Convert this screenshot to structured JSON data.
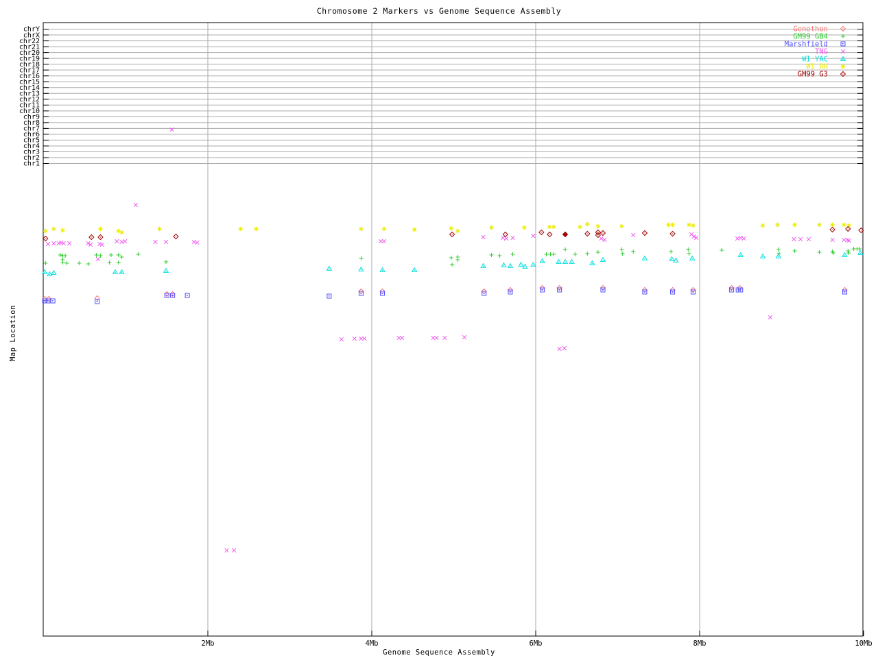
{
  "chart_data": {
    "type": "scatter",
    "title": "Chromosome 2 Markers vs Genome Sequence Assembly",
    "xlabel": "Genome Sequence Assembly",
    "ylabel": "Map Location",
    "xlim": [
      0,
      10
    ],
    "x_unit": "Mb",
    "y_note": "y-axis has no numeric scale; point y values are vertical screen positions (px), chromosome bins listed bottom-to-top",
    "grid": "horizontal line per chromosome bin, vertical line per labeled Mb tick",
    "legend_position": "top-right inside plot",
    "colors": {
      "axis": "#000000",
      "gridline": "#aaaaaa",
      "background": "#ffffff"
    },
    "x_ticks": [
      {
        "label": "2Mb",
        "mb": 2,
        "grid": true
      },
      {
        "label": "4Mb",
        "mb": 4,
        "grid": true
      },
      {
        "label": "6Mb",
        "mb": 6,
        "grid": true
      },
      {
        "label": "8Mb",
        "mb": 8,
        "grid": true
      },
      {
        "label": "10Mb",
        "mb": 10,
        "grid": false
      }
    ],
    "y_categories": [
      "chr1",
      "chr2",
      "chr3",
      "chr4",
      "chr5",
      "chr6",
      "chr7",
      "chr8",
      "chr9",
      "chr10",
      "chr11",
      "chr12",
      "chr13",
      "chr14",
      "chr15",
      "chr16",
      "chr17",
      "chr18",
      "chr19",
      "chr20",
      "chr21",
      "chr22",
      "chrX",
      "chrY"
    ],
    "series": [
      {
        "name": "Genethon",
        "color": "#f87878",
        "marker": "open-diamond-dot",
        "points": [
          [
            0.01,
            436
          ],
          [
            0.06,
            436
          ],
          [
            0.65,
            435
          ],
          [
            1.5,
            429
          ],
          [
            1.57,
            429
          ],
          [
            3.87,
            425
          ],
          [
            4.13,
            425
          ],
          [
            5.37,
            425
          ],
          [
            5.69,
            423
          ],
          [
            6.08,
            420
          ],
          [
            6.29,
            420
          ],
          [
            6.82,
            420
          ],
          [
            7.33,
            423
          ],
          [
            7.67,
            423
          ],
          [
            7.92,
            423
          ],
          [
            8.39,
            420
          ],
          [
            8.49,
            420
          ],
          [
            9.77,
            423
          ]
        ]
      },
      {
        "name": "GM99 GB4",
        "color": "#33cc33",
        "marker": "plus",
        "points": [
          [
            0.02,
            384
          ],
          [
            0.2,
            372
          ],
          [
            0.23,
            373
          ],
          [
            0.26,
            373
          ],
          [
            0.23,
            379
          ],
          [
            0.23,
            383
          ],
          [
            0.28,
            384
          ],
          [
            0.43,
            384
          ],
          [
            0.54,
            385
          ],
          [
            0.64,
            372
          ],
          [
            0.69,
            373
          ],
          [
            0.82,
            372
          ],
          [
            0.8,
            383
          ],
          [
            0.91,
            372
          ],
          [
            0.95,
            375
          ],
          [
            0.91,
            383
          ],
          [
            1.15,
            371
          ],
          [
            1.49,
            382
          ],
          [
            3.87,
            377
          ],
          [
            4.97,
            376
          ],
          [
            5.05,
            375
          ],
          [
            5.05,
            379
          ],
          [
            4.98,
            386
          ],
          [
            5.46,
            372
          ],
          [
            5.56,
            373
          ],
          [
            5.72,
            371
          ],
          [
            6.13,
            371
          ],
          [
            6.18,
            371
          ],
          [
            6.22,
            371
          ],
          [
            6.36,
            364
          ],
          [
            6.48,
            371
          ],
          [
            6.63,
            370
          ],
          [
            6.76,
            368
          ],
          [
            7.05,
            364
          ],
          [
            7.06,
            370
          ],
          [
            7.19,
            367
          ],
          [
            7.65,
            367
          ],
          [
            7.86,
            364
          ],
          [
            7.87,
            370
          ],
          [
            8.27,
            365
          ],
          [
            8.96,
            364
          ],
          [
            8.97,
            370
          ],
          [
            9.16,
            366
          ],
          [
            9.46,
            368
          ],
          [
            9.62,
            367
          ],
          [
            9.63,
            369
          ],
          [
            9.81,
            366
          ],
          [
            9.82,
            369
          ],
          [
            9.88,
            363
          ],
          [
            9.92,
            363
          ],
          [
            9.95,
            363
          ]
        ]
      },
      {
        "name": "Marshfield",
        "color": "#4f4fff",
        "marker": "open-square-dot",
        "points": [
          [
            0.01,
            439
          ],
          [
            0.05,
            439
          ],
          [
            0.11,
            439
          ],
          [
            0.65,
            440
          ],
          [
            1.5,
            431
          ],
          [
            1.57,
            431
          ],
          [
            1.75,
            431
          ],
          [
            3.48,
            432
          ],
          [
            3.87,
            428
          ],
          [
            4.13,
            428
          ],
          [
            5.37,
            428
          ],
          [
            5.69,
            426
          ],
          [
            6.08,
            423
          ],
          [
            6.29,
            423
          ],
          [
            6.82,
            423
          ],
          [
            7.33,
            426
          ],
          [
            7.67,
            426
          ],
          [
            7.92,
            426
          ],
          [
            8.39,
            423
          ],
          [
            8.47,
            423
          ],
          [
            8.5,
            423
          ],
          [
            9.77,
            426
          ]
        ]
      },
      {
        "name": "TNG",
        "color": "#ee55ee",
        "marker": "cross",
        "points": [
          [
            0.05,
            356
          ],
          [
            0.12,
            355
          ],
          [
            0.18,
            355
          ],
          [
            0.21,
            354
          ],
          [
            0.24,
            355
          ],
          [
            0.31,
            355
          ],
          [
            0.54,
            355
          ],
          [
            0.57,
            357
          ],
          [
            0.66,
            378
          ],
          [
            0.68,
            356
          ],
          [
            0.71,
            357
          ],
          [
            0.89,
            352
          ],
          [
            0.95,
            353
          ],
          [
            0.99,
            352
          ],
          [
            1.36,
            353
          ],
          [
            1.49,
            353
          ],
          [
            1.83,
            353
          ],
          [
            1.87,
            354
          ],
          [
            4.11,
            352
          ],
          [
            4.15,
            352
          ],
          [
            5.36,
            346
          ],
          [
            5.6,
            347
          ],
          [
            5.64,
            348
          ],
          [
            5.72,
            347
          ],
          [
            5.97,
            344
          ],
          [
            6.8,
            348
          ],
          [
            6.84,
            350
          ],
          [
            7.19,
            343
          ],
          [
            7.9,
            342
          ],
          [
            7.93,
            345
          ],
          [
            7.96,
            347
          ],
          [
            8.46,
            348
          ],
          [
            8.5,
            347
          ],
          [
            8.54,
            348
          ],
          [
            9.15,
            349
          ],
          [
            9.23,
            349
          ],
          [
            9.33,
            349
          ],
          [
            9.62,
            350
          ],
          [
            9.76,
            350
          ],
          [
            9.8,
            350
          ],
          [
            9.82,
            351
          ],
          [
            1.56,
            189
          ],
          [
            1.12,
            299
          ],
          [
            8.86,
            463
          ],
          [
            3.63,
            495
          ],
          [
            3.79,
            494
          ],
          [
            3.87,
            494
          ],
          [
            3.91,
            494
          ],
          [
            4.33,
            493
          ],
          [
            4.37,
            493
          ],
          [
            4.75,
            493
          ],
          [
            4.79,
            493
          ],
          [
            4.89,
            493
          ],
          [
            5.13,
            492
          ],
          [
            6.29,
            509
          ],
          [
            6.35,
            508
          ],
          [
            2.23,
            803
          ],
          [
            2.32,
            803
          ]
        ]
      },
      {
        "name": "WI YAC",
        "color": "#00dddd",
        "marker": "open-triangle-dot",
        "points": [
          [
            0.01,
            397
          ],
          [
            0.07,
            400
          ],
          [
            0.12,
            398
          ],
          [
            0.87,
            397
          ],
          [
            0.95,
            397
          ],
          [
            1.49,
            395
          ],
          [
            3.48,
            392
          ],
          [
            3.87,
            393
          ],
          [
            4.13,
            394
          ],
          [
            4.52,
            394
          ],
          [
            5.36,
            388
          ],
          [
            5.61,
            387
          ],
          [
            5.69,
            388
          ],
          [
            5.82,
            386
          ],
          [
            5.87,
            389
          ],
          [
            5.97,
            386
          ],
          [
            6.08,
            381
          ],
          [
            6.28,
            382
          ],
          [
            6.36,
            382
          ],
          [
            6.44,
            382
          ],
          [
            6.69,
            384
          ],
          [
            6.82,
            379
          ],
          [
            7.33,
            377
          ],
          [
            7.66,
            378
          ],
          [
            7.71,
            380
          ],
          [
            7.91,
            377
          ],
          [
            8.5,
            372
          ],
          [
            8.77,
            374
          ],
          [
            8.96,
            374
          ],
          [
            9.77,
            372
          ],
          [
            9.96,
            369
          ]
        ]
      },
      {
        "name": "WI RH",
        "color": "#eded00",
        "marker": "asterisk-star",
        "points": [
          [
            0.02,
            337
          ],
          [
            0.12,
            334
          ],
          [
            0.23,
            336
          ],
          [
            0.69,
            334
          ],
          [
            0.91,
            337
          ],
          [
            0.95,
            339
          ],
          [
            1.41,
            334
          ],
          [
            2.4,
            334
          ],
          [
            2.59,
            334
          ],
          [
            3.87,
            334
          ],
          [
            4.15,
            334
          ],
          [
            4.52,
            335
          ],
          [
            4.97,
            333
          ],
          [
            5.05,
            337
          ],
          [
            5.46,
            332
          ],
          [
            5.86,
            332
          ],
          [
            6.17,
            331
          ],
          [
            6.22,
            331
          ],
          [
            6.54,
            331
          ],
          [
            6.63,
            327
          ],
          [
            6.76,
            330
          ],
          [
            7.05,
            330
          ],
          [
            7.62,
            328
          ],
          [
            7.67,
            328
          ],
          [
            7.87,
            328
          ],
          [
            7.92,
            329
          ],
          [
            8.77,
            329
          ],
          [
            8.95,
            328
          ],
          [
            9.16,
            328
          ],
          [
            9.46,
            328
          ],
          [
            9.62,
            328
          ],
          [
            9.76,
            328
          ],
          [
            9.82,
            329
          ]
        ]
      },
      {
        "name": "GM99 G3",
        "color": "#a00000",
        "marker": "open-diamond-dot",
        "points": [
          [
            0.02,
            348
          ],
          [
            0.58,
            346
          ],
          [
            0.69,
            346
          ],
          [
            1.61,
            345
          ],
          [
            4.98,
            342
          ],
          [
            5.63,
            342
          ],
          [
            6.07,
            339
          ],
          [
            6.17,
            342
          ],
          [
            6.36,
            342,
            "filled"
          ],
          [
            6.63,
            341
          ],
          [
            6.76,
            339
          ],
          [
            6.76,
            343
          ],
          [
            6.82,
            340
          ],
          [
            7.33,
            340
          ],
          [
            7.67,
            341
          ],
          [
            9.62,
            335
          ],
          [
            9.81,
            334
          ],
          [
            9.97,
            336
          ]
        ]
      }
    ]
  }
}
